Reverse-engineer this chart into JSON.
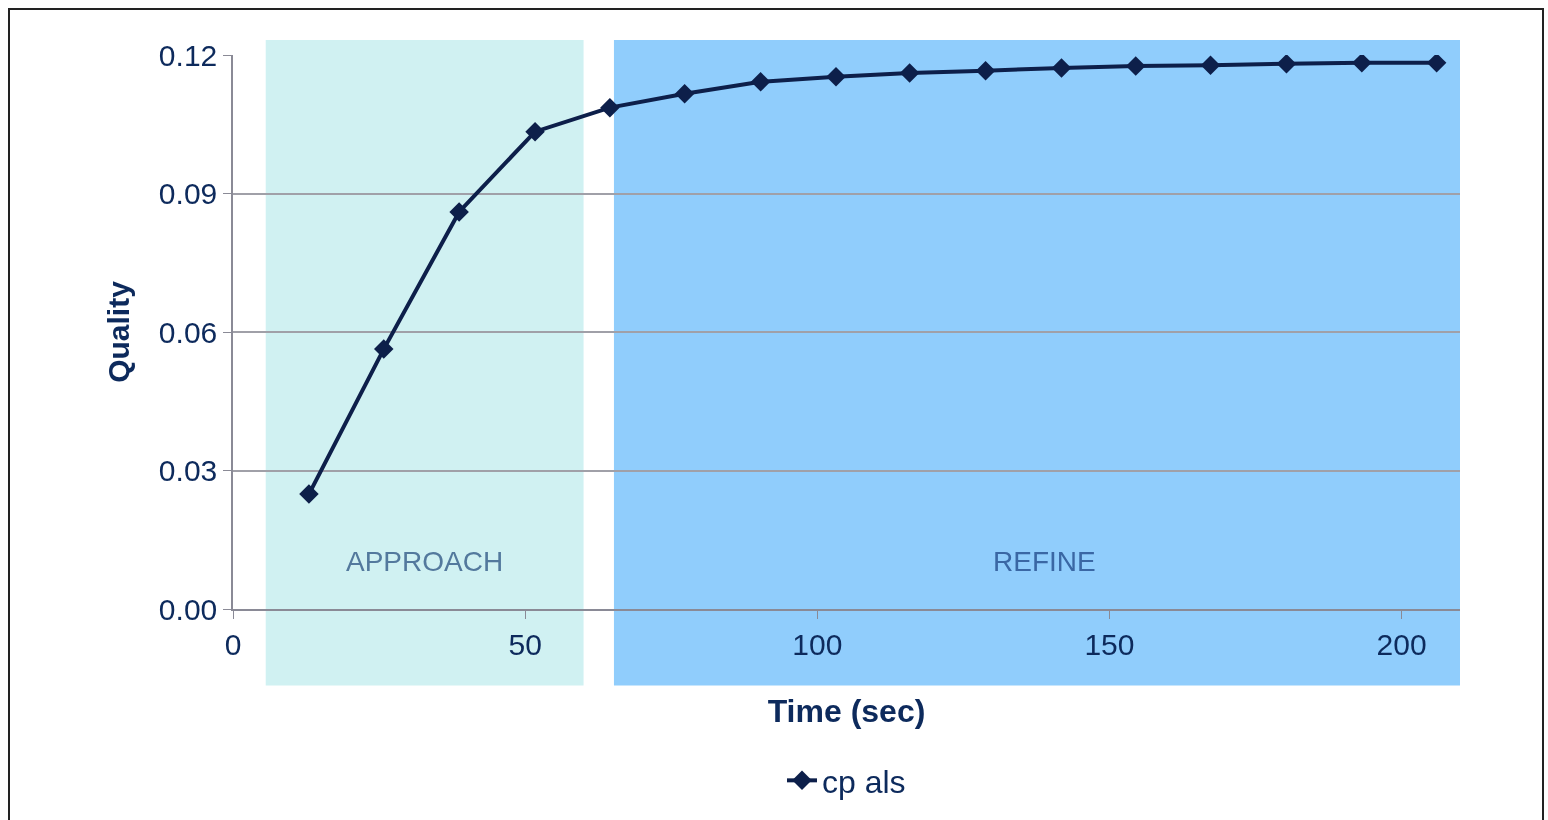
{
  "chart_data": {
    "type": "line",
    "xlabel": "Time (sec)",
    "ylabel": "Quality",
    "xlim": [
      0,
      210
    ],
    "xticks": [
      0,
      50,
      100,
      150,
      200
    ],
    "ylim": [
      0,
      0.12
    ],
    "yticks": [
      {
        "value": 0,
        "label": "0.00"
      },
      0.03,
      0.06,
      0.09,
      0.12
    ],
    "grid": "y",
    "legend": "bottom",
    "marker": "diamond",
    "line_style": "solid",
    "series": [
      {
        "name": "cp als",
        "color": "#0d1f4a",
        "x": [
          13,
          25.8,
          38.7,
          51.7,
          64.5,
          77.3,
          90.3,
          103.2,
          115.8,
          128.8,
          141.8,
          154.5,
          167.3,
          180.3,
          193.2,
          206
        ],
        "values": [
          0.0249,
          0.0563,
          0.086,
          0.1034,
          0.1086,
          0.1116,
          0.1142,
          0.1153,
          0.1161,
          0.1166,
          0.1172,
          0.1176,
          0.1178,
          0.1181,
          0.1183,
          0.1183
        ]
      }
    ],
    "bands": [
      {
        "axis": "x",
        "from": 5.6,
        "to": 60,
        "label": "APPROACH",
        "color": "#d0f1f2"
      },
      {
        "axis": "x",
        "from": 65.2,
        "to": 212.7,
        "label": "REFINE",
        "color": "#90cdfc"
      }
    ]
  }
}
